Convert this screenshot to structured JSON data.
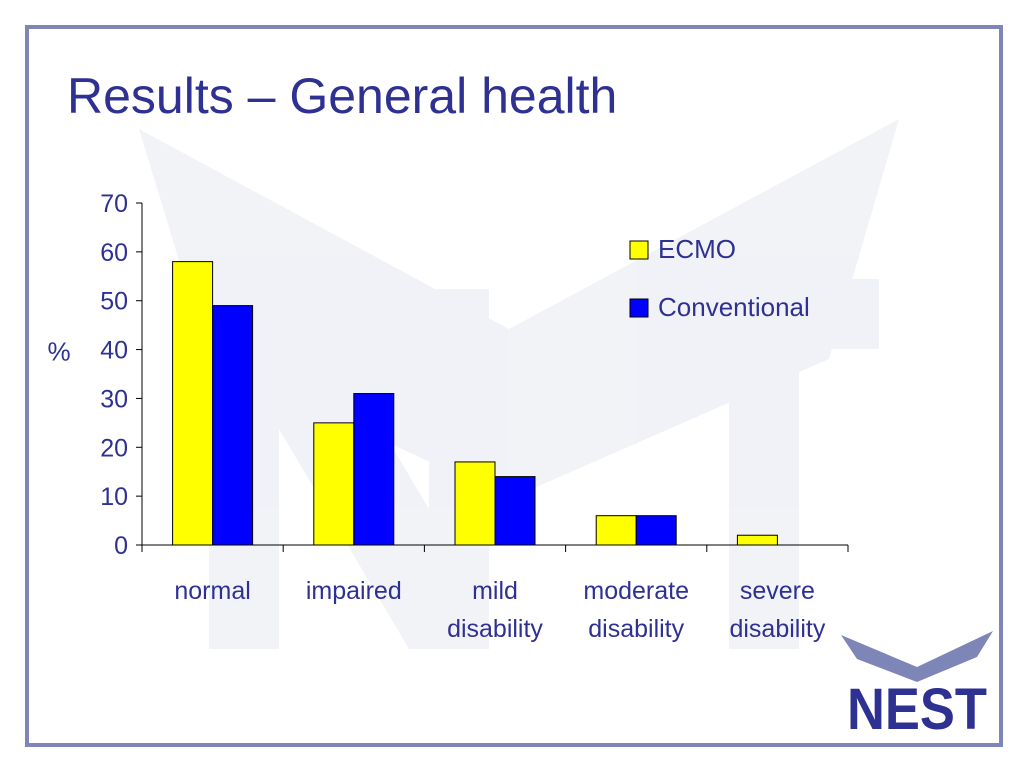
{
  "slide": {
    "title": "Results – General health",
    "logo_text": "NEST"
  },
  "colors": {
    "title": "#2e3192",
    "frame": "#7e86b8",
    "series_ecmo": "#ffff00",
    "series_conventional": "#0000ff",
    "text": "#2e3192"
  },
  "chart_data": {
    "type": "bar",
    "title": "",
    "ylabel": "%",
    "xlabel": "",
    "ylim": [
      0,
      70
    ],
    "yticks": [
      0,
      10,
      20,
      30,
      40,
      50,
      60,
      70
    ],
    "categories": [
      [
        "normal"
      ],
      [
        "impaired"
      ],
      [
        "mild",
        "disability"
      ],
      [
        "moderate",
        "disability"
      ],
      [
        "severe",
        "disability"
      ]
    ],
    "series": [
      {
        "name": "ECMO",
        "color": "#ffff00",
        "values": [
          58,
          25,
          17,
          6,
          2
        ]
      },
      {
        "name": "Conventional",
        "color": "#0000ff",
        "values": [
          49,
          31,
          14,
          6,
          0
        ]
      }
    ],
    "legend_position": "top-right",
    "grid": false
  }
}
